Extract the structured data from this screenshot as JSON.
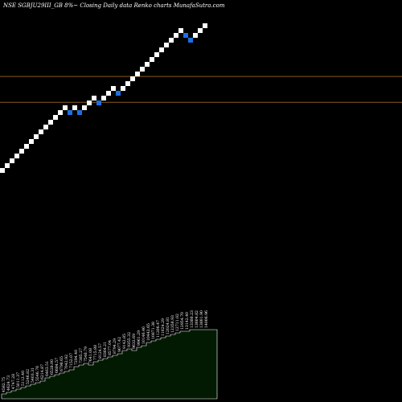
{
  "chart_data": {
    "type": "renko",
    "title": "NSE SGBJU29III_GB 8%~  Closing Daily data  Renko  charts MunafaSutra.com",
    "colors": {
      "background": "#000000",
      "up_brick": "#ffffff",
      "down_brick": "#1e6fe0",
      "reference_line": "#8b5a1e",
      "volume_fill": "#021a02",
      "volume_stroke": "#ffffff"
    },
    "grid": false,
    "reference_levels": [
      {
        "level": 0.382
      },
      {
        "level": 0.618
      }
    ],
    "bricks": [
      {
        "i": 0,
        "level": 0,
        "dir": "up"
      },
      {
        "i": 1,
        "level": 1,
        "dir": "up"
      },
      {
        "i": 2,
        "level": 2,
        "dir": "up"
      },
      {
        "i": 3,
        "level": 3,
        "dir": "up"
      },
      {
        "i": 4,
        "level": 4,
        "dir": "up"
      },
      {
        "i": 5,
        "level": 5,
        "dir": "up"
      },
      {
        "i": 6,
        "level": 6,
        "dir": "up"
      },
      {
        "i": 7,
        "level": 7,
        "dir": "up"
      },
      {
        "i": 8,
        "level": 8,
        "dir": "up"
      },
      {
        "i": 9,
        "level": 9,
        "dir": "up"
      },
      {
        "i": 10,
        "level": 10,
        "dir": "up"
      },
      {
        "i": 11,
        "level": 11,
        "dir": "up"
      },
      {
        "i": 12,
        "level": 12,
        "dir": "up"
      },
      {
        "i": 13,
        "level": 13,
        "dir": "up"
      },
      {
        "i": 14,
        "level": 12,
        "dir": "down"
      },
      {
        "i": 15,
        "level": 13,
        "dir": "up"
      },
      {
        "i": 16,
        "level": 12,
        "dir": "down"
      },
      {
        "i": 17,
        "level": 13,
        "dir": "up"
      },
      {
        "i": 18,
        "level": 14,
        "dir": "up"
      },
      {
        "i": 19,
        "level": 15,
        "dir": "up"
      },
      {
        "i": 20,
        "level": 14,
        "dir": "down"
      },
      {
        "i": 21,
        "level": 15,
        "dir": "up"
      },
      {
        "i": 22,
        "level": 16,
        "dir": "up"
      },
      {
        "i": 23,
        "level": 17,
        "dir": "up"
      },
      {
        "i": 24,
        "level": 16,
        "dir": "down"
      },
      {
        "i": 25,
        "level": 17,
        "dir": "up"
      },
      {
        "i": 26,
        "level": 18,
        "dir": "up"
      },
      {
        "i": 27,
        "level": 19,
        "dir": "up"
      },
      {
        "i": 28,
        "level": 20,
        "dir": "up"
      },
      {
        "i": 29,
        "level": 21,
        "dir": "up"
      },
      {
        "i": 30,
        "level": 22,
        "dir": "up"
      },
      {
        "i": 31,
        "level": 23,
        "dir": "up"
      },
      {
        "i": 32,
        "level": 24,
        "dir": "up"
      },
      {
        "i": 33,
        "level": 25,
        "dir": "up"
      },
      {
        "i": 34,
        "level": 26,
        "dir": "up"
      },
      {
        "i": 35,
        "level": 27,
        "dir": "up"
      },
      {
        "i": 36,
        "level": 28,
        "dir": "up"
      },
      {
        "i": 37,
        "level": 29,
        "dir": "up"
      },
      {
        "i": 38,
        "level": 28,
        "dir": "down"
      },
      {
        "i": 39,
        "level": 27,
        "dir": "down"
      },
      {
        "i": 40,
        "level": 28,
        "dir": "up"
      },
      {
        "i": 41,
        "level": 29,
        "dir": "up"
      },
      {
        "i": 42,
        "level": 30,
        "dir": "up"
      }
    ],
    "volume": [
      {
        "label": "4582.75",
        "value": 3
      },
      {
        "label": "4624.73",
        "value": 4
      },
      {
        "label": "4747.28",
        "value": 5
      },
      {
        "label": "5011.37",
        "value": 6
      },
      {
        "label": "5112.40",
        "value": 7
      },
      {
        "label": "5246.82",
        "value": 8
      },
      {
        "label": "5403.31",
        "value": 9
      },
      {
        "label": "5546.76",
        "value": 10
      },
      {
        "label": "6214.87",
        "value": 11
      },
      {
        "label": "6463.51",
        "value": 13
      },
      {
        "label": "6528.00",
        "value": 14
      },
      {
        "label": "6684.57",
        "value": 15
      },
      {
        "label": "6798.65",
        "value": 16
      },
      {
        "label": "7042.92",
        "value": 17
      },
      {
        "label": "7152.07",
        "value": 18
      },
      {
        "label": "7294.40",
        "value": 20
      },
      {
        "label": "7385.27",
        "value": 21
      },
      {
        "label": "7548.79",
        "value": 22
      },
      {
        "label": "7641.08",
        "value": 21
      },
      {
        "label": "7715.88",
        "value": 23
      },
      {
        "label": "8124.57",
        "value": 24
      },
      {
        "label": "8364.21",
        "value": 25
      },
      {
        "label": "8577.04",
        "value": 26
      },
      {
        "label": "8794.29",
        "value": 27
      },
      {
        "label": "9077.42",
        "value": 28
      },
      {
        "label": "9142.85",
        "value": 30
      },
      {
        "label": "9355.32",
        "value": 31
      },
      {
        "label": "9632.69",
        "value": 30
      },
      {
        "label": "9961.29",
        "value": 32
      },
      {
        "label": "10146.46",
        "value": 33
      },
      {
        "label": "10442.65",
        "value": 35
      },
      {
        "label": "10871.38",
        "value": 36
      },
      {
        "label": "11206.47",
        "value": 37
      },
      {
        "label": "11624.29",
        "value": 38
      },
      {
        "label": "12024.81",
        "value": 39
      },
      {
        "label": "12358.93",
        "value": 40
      },
      {
        "label": "12711.02",
        "value": 41
      },
      {
        "label": "12954.70",
        "value": 42
      },
      {
        "label": "13142.40",
        "value": 42
      },
      {
        "label": "13388.23",
        "value": 43
      },
      {
        "label": "13604.82",
        "value": 43
      },
      {
        "label": "13801.90",
        "value": 43
      },
      {
        "label": "14006.96",
        "value": 43
      }
    ],
    "volume_max": 60
  }
}
